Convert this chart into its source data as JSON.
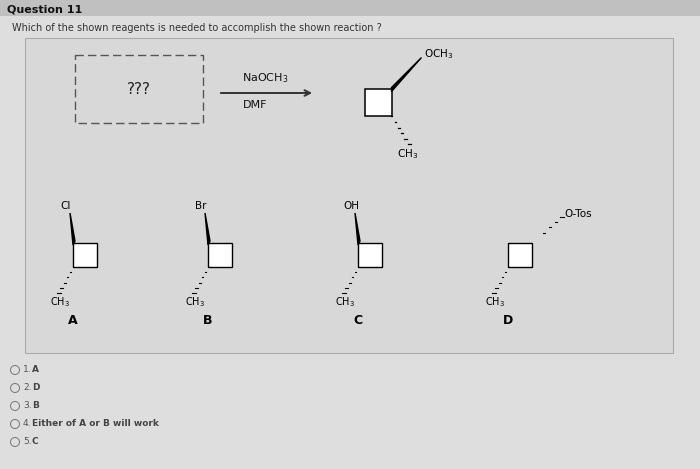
{
  "title": "Question 11",
  "question": "Which of the shown reagents is needed to accomplish the shown reaction ?",
  "options": [
    [
      "1.",
      "A"
    ],
    [
      "2.",
      "D"
    ],
    [
      "3.",
      "B"
    ],
    [
      "4.",
      "Either of A or B will work"
    ],
    [
      "5.",
      "C"
    ]
  ],
  "choices": [
    {
      "label": "A",
      "sub": "Cl"
    },
    {
      "label": "B",
      "sub": "Br"
    },
    {
      "label": "C",
      "sub": "OH"
    },
    {
      "label": "D",
      "sub": "O-Tos"
    }
  ],
  "bg_color": "#d8d8d8",
  "panel_bg": "#d4d4d4",
  "white": "#ffffff",
  "black": "#000000",
  "header_bg": "#c8c8c8"
}
